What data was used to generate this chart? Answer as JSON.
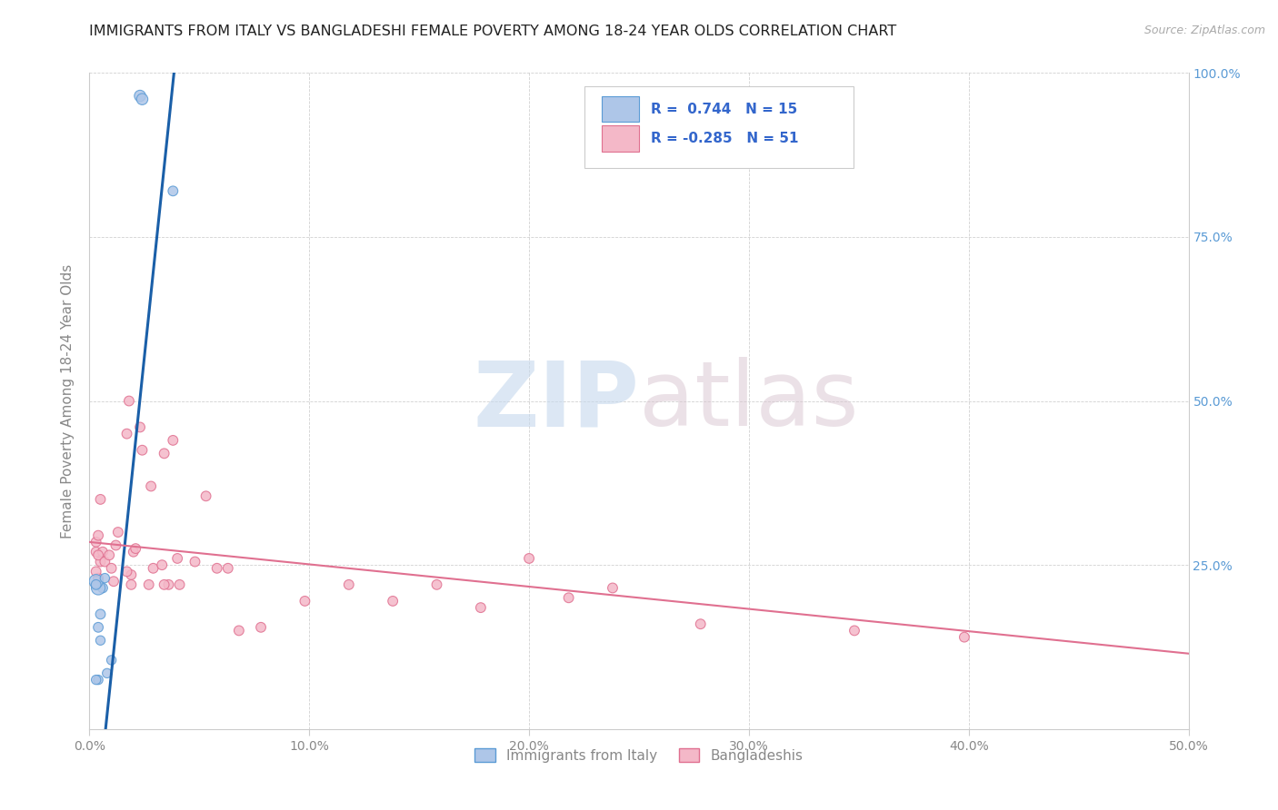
{
  "title": "IMMIGRANTS FROM ITALY VS BANGLADESHI FEMALE POVERTY AMONG 18-24 YEAR OLDS CORRELATION CHART",
  "source": "Source: ZipAtlas.com",
  "ylabel": "Female Poverty Among 18-24 Year Olds",
  "xlim": [
    0.0,
    0.5
  ],
  "ylim": [
    0.0,
    1.0
  ],
  "xticks": [
    0.0,
    0.1,
    0.2,
    0.3,
    0.4,
    0.5
  ],
  "xtick_labels": [
    "0.0%",
    "10.0%",
    "20.0%",
    "30.0%",
    "40.0%",
    "50.0%"
  ],
  "yticks": [
    0.0,
    0.25,
    0.5,
    0.75,
    1.0
  ],
  "ytick_labels_right": [
    "",
    "25.0%",
    "50.0%",
    "75.0%",
    "100.0%"
  ],
  "blue_color": "#aec6e8",
  "blue_edge": "#5b9bd5",
  "pink_color": "#f4b8c8",
  "pink_edge": "#e07090",
  "blue_line_color": "#1a5fa8",
  "pink_line_color": "#e07090",
  "legend_R_blue": "0.744",
  "legend_N_blue": "15",
  "legend_R_pink": "-0.285",
  "legend_N_pink": "51",
  "legend_label_blue": "Immigrants from Italy",
  "legend_label_pink": "Bangladeshis",
  "watermark_zip": "ZIP",
  "watermark_atlas": "atlas",
  "blue_scatter_x": [
    0.023,
    0.024,
    0.038,
    0.006,
    0.004,
    0.003,
    0.005,
    0.004,
    0.003,
    0.008,
    0.01,
    0.007,
    0.004,
    0.003,
    0.005
  ],
  "blue_scatter_y": [
    0.965,
    0.96,
    0.82,
    0.215,
    0.215,
    0.225,
    0.175,
    0.155,
    0.22,
    0.085,
    0.105,
    0.23,
    0.075,
    0.075,
    0.135
  ],
  "blue_scatter_size": [
    80,
    80,
    60,
    60,
    120,
    120,
    60,
    60,
    60,
    55,
    55,
    55,
    55,
    55,
    55
  ],
  "pink_scatter_x": [
    0.003,
    0.003,
    0.004,
    0.004,
    0.005,
    0.005,
    0.006,
    0.004,
    0.003,
    0.007,
    0.012,
    0.01,
    0.009,
    0.013,
    0.011,
    0.018,
    0.017,
    0.02,
    0.019,
    0.024,
    0.023,
    0.017,
    0.019,
    0.021,
    0.028,
    0.029,
    0.033,
    0.027,
    0.034,
    0.038,
    0.036,
    0.04,
    0.034,
    0.041,
    0.048,
    0.053,
    0.058,
    0.063,
    0.068,
    0.078,
    0.098,
    0.118,
    0.138,
    0.158,
    0.178,
    0.2,
    0.218,
    0.238,
    0.278,
    0.348,
    0.398
  ],
  "pink_scatter_y": [
    0.27,
    0.285,
    0.295,
    0.23,
    0.255,
    0.35,
    0.27,
    0.265,
    0.24,
    0.255,
    0.28,
    0.245,
    0.265,
    0.3,
    0.225,
    0.5,
    0.45,
    0.27,
    0.235,
    0.425,
    0.46,
    0.24,
    0.22,
    0.275,
    0.37,
    0.245,
    0.25,
    0.22,
    0.42,
    0.44,
    0.22,
    0.26,
    0.22,
    0.22,
    0.255,
    0.355,
    0.245,
    0.245,
    0.15,
    0.155,
    0.195,
    0.22,
    0.195,
    0.22,
    0.185,
    0.26,
    0.2,
    0.215,
    0.16,
    0.15,
    0.14
  ],
  "pink_scatter_size": [
    60,
    60,
    60,
    60,
    60,
    60,
    60,
    60,
    60,
    60,
    60,
    60,
    60,
    60,
    60,
    60,
    60,
    60,
    60,
    60,
    60,
    60,
    60,
    60,
    60,
    60,
    60,
    60,
    60,
    60,
    60,
    60,
    60,
    60,
    60,
    60,
    60,
    60,
    60,
    60,
    60,
    60,
    60,
    60,
    60,
    60,
    60,
    60,
    60,
    60,
    60
  ],
  "blue_line_x": [
    -0.002,
    0.04
  ],
  "blue_line_y": [
    -0.3,
    1.05
  ],
  "pink_line_x": [
    0.0,
    0.5
  ],
  "pink_line_y": [
    0.285,
    0.115
  ]
}
